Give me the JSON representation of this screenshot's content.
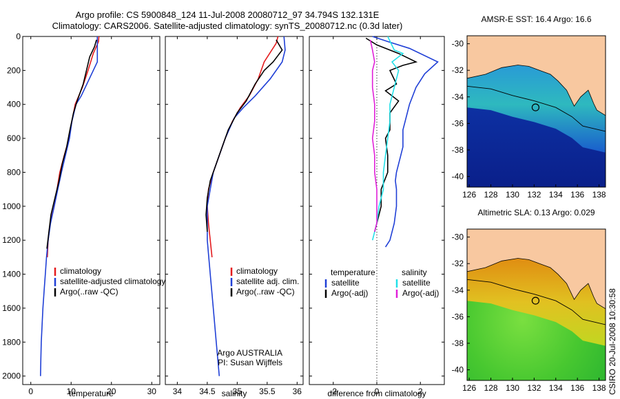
{
  "header": {
    "line1": "Argo profile: CS 5900848_124 11-Jul-2008 20080712_97 34.794S 132.131E",
    "line2": "Climatology: CARS2006. Satellite-adjusted climatology: synTS_20080712.nc (0.3d later)"
  },
  "side_label": "CSIRO 20-Jul-2008 10:30:58",
  "colors": {
    "climatology": "#e41a1c",
    "satellite": "#1f3fd6",
    "argo": "#000000",
    "sat_cyan": "#22e0e8",
    "argo_mag": "#e020d8",
    "land": "#f8c8a0"
  },
  "chart_data": [
    {
      "type": "line",
      "id": "temperature",
      "xlabel": "temperature",
      "xlim": [
        -2,
        32
      ],
      "ylim": [
        2050,
        0
      ],
      "x_ticks": [
        0,
        10,
        20,
        30
      ],
      "y_ticks": [
        0,
        200,
        400,
        600,
        800,
        1000,
        1200,
        1400,
        1600,
        1800,
        2000
      ],
      "legend": [
        {
          "label": "climatology",
          "color": "climatology"
        },
        {
          "label": "satellite-adjusted climatology",
          "color": "satellite"
        },
        {
          "label": "Argo(..raw -QC)",
          "color": "argo"
        }
      ],
      "series": [
        {
          "name": "climatology",
          "color": "climatology",
          "points": [
            [
              16.9,
              0
            ],
            [
              16.8,
              30
            ],
            [
              15.5,
              100
            ],
            [
              14.2,
              200
            ],
            [
              12.8,
              300
            ],
            [
              11,
              400
            ],
            [
              10.2,
              500
            ],
            [
              9.5,
              600
            ],
            [
              8.3,
              700
            ],
            [
              7.2,
              800
            ],
            [
              6.5,
              900
            ],
            [
              5.8,
              1000
            ],
            [
              4.8,
              1100
            ],
            [
              4.3,
              1200
            ],
            [
              4.1,
              1300
            ]
          ]
        },
        {
          "name": "satellite-adjusted climatology",
          "color": "satellite",
          "points": [
            [
              16.5,
              0
            ],
            [
              16.5,
              150
            ],
            [
              14.5,
              250
            ],
            [
              12.5,
              350
            ],
            [
              11.2,
              400
            ],
            [
              10.2,
              500
            ],
            [
              9.6,
              600
            ],
            [
              8.6,
              700
            ],
            [
              7.6,
              800
            ],
            [
              6.7,
              900
            ],
            [
              5.8,
              1000
            ],
            [
              4.9,
              1100
            ],
            [
              4.3,
              1200
            ],
            [
              3.9,
              1300
            ],
            [
              3.6,
              1400
            ],
            [
              3.3,
              1500
            ],
            [
              3,
              1600
            ],
            [
              2.8,
              1700
            ],
            [
              2.6,
              1800
            ],
            [
              2.5,
              1900
            ],
            [
              2.4,
              2000
            ]
          ]
        },
        {
          "name": "Argo(..raw -QC)",
          "color": "argo",
          "points": [
            [
              16.3,
              20
            ],
            [
              15.8,
              60
            ],
            [
              14.6,
              120
            ],
            [
              13.8,
              200
            ],
            [
              13,
              280
            ],
            [
              11.5,
              380
            ],
            [
              10.6,
              450
            ],
            [
              9.7,
              550
            ],
            [
              8.9,
              650
            ],
            [
              7.8,
              750
            ],
            [
              7,
              850
            ],
            [
              6,
              950
            ],
            [
              5,
              1050
            ],
            [
              4.5,
              1150
            ],
            [
              4,
              1250
            ]
          ]
        }
      ]
    },
    {
      "type": "line",
      "id": "salinity",
      "xlabel": "salinity",
      "xlim": [
        33.8,
        36.1
      ],
      "ylim": [
        2050,
        0
      ],
      "x_ticks": [
        34,
        34.5,
        35,
        35.5,
        36
      ],
      "x_tick_labels": [
        "34",
        "34.5",
        "35",
        "35.5",
        "36"
      ],
      "legend": [
        {
          "label": "climatology",
          "color": "climatology"
        },
        {
          "label": "satellite adj. clim.",
          "color": "satellite"
        },
        {
          "label": "Argo(..raw -QC)",
          "color": "argo"
        }
      ],
      "annotation": [
        "Argo AUSTRALIA",
        "PI: Susan Wijffels"
      ],
      "series": [
        {
          "name": "climatology",
          "color": "climatology",
          "points": [
            [
              35.68,
              0
            ],
            [
              35.65,
              40
            ],
            [
              35.45,
              150
            ],
            [
              35.35,
              250
            ],
            [
              35.2,
              350
            ],
            [
              35.05,
              420
            ],
            [
              34.92,
              500
            ],
            [
              34.8,
              600
            ],
            [
              34.7,
              700
            ],
            [
              34.6,
              800
            ],
            [
              34.52,
              900
            ],
            [
              34.5,
              1000
            ],
            [
              34.52,
              1100
            ],
            [
              34.55,
              1200
            ],
            [
              34.58,
              1300
            ]
          ]
        },
        {
          "name": "satellite adj. clim.",
          "color": "satellite",
          "points": [
            [
              35.78,
              0
            ],
            [
              35.8,
              80
            ],
            [
              35.75,
              150
            ],
            [
              35.55,
              250
            ],
            [
              35.3,
              350
            ],
            [
              35.1,
              420
            ],
            [
              34.95,
              480
            ],
            [
              34.8,
              600
            ],
            [
              34.7,
              700
            ],
            [
              34.6,
              800
            ],
            [
              34.55,
              900
            ],
            [
              34.5,
              1000
            ],
            [
              34.5,
              1200
            ],
            [
              34.55,
              1400
            ],
            [
              34.6,
              1600
            ],
            [
              34.65,
              1800
            ],
            [
              34.7,
              2000
            ]
          ]
        },
        {
          "name": "Argo(..raw -QC)",
          "color": "argo",
          "points": [
            [
              35.65,
              20
            ],
            [
              35.75,
              80
            ],
            [
              35.6,
              150
            ],
            [
              35.45,
              200
            ],
            [
              35.3,
              280
            ],
            [
              35.15,
              380
            ],
            [
              35,
              450
            ],
            [
              34.85,
              550
            ],
            [
              34.75,
              650
            ],
            [
              34.65,
              750
            ],
            [
              34.55,
              850
            ],
            [
              34.5,
              950
            ],
            [
              34.48,
              1050
            ],
            [
              34.5,
              1150
            ]
          ]
        }
      ]
    },
    {
      "type": "line",
      "id": "difference",
      "xlabel": "difference from climatology",
      "xlim": [
        -3.1,
        3.1
      ],
      "ylim": [
        2050,
        0
      ],
      "x_ticks": [
        -2,
        0,
        2
      ],
      "legend_headers": [
        "temperature",
        "salinity"
      ],
      "legend": [
        {
          "label": "satellite",
          "color": "satellite"
        },
        {
          "label": "Argo(-adj)",
          "color": "argo"
        },
        {
          "label": "satellite",
          "color": "sat_cyan"
        },
        {
          "label": "Argo(-adj)",
          "color": "argo_mag"
        }
      ],
      "series": [
        {
          "name": "temperature satellite",
          "color": "satellite",
          "points": [
            [
              -0.2,
              0
            ],
            [
              0.5,
              30
            ],
            [
              1.5,
              70
            ],
            [
              2.8,
              150
            ],
            [
              2.2,
              220
            ],
            [
              1.8,
              300
            ],
            [
              1.5,
              400
            ],
            [
              1.3,
              500
            ],
            [
              1.2,
              550
            ],
            [
              1.2,
              650
            ],
            [
              1.1,
              700
            ],
            [
              0.9,
              800
            ],
            [
              0.85,
              850
            ],
            [
              0.9,
              900
            ],
            [
              0.9,
              1000
            ],
            [
              0.8,
              1100
            ],
            [
              0.6,
              1200
            ],
            [
              0.4,
              1240
            ]
          ]
        },
        {
          "name": "temperature Argo(-adj)",
          "color": "argo",
          "points": [
            [
              -0.5,
              10
            ],
            [
              0,
              50
            ],
            [
              1,
              100
            ],
            [
              1.8,
              150
            ],
            [
              1.2,
              170
            ],
            [
              0.6,
              200
            ],
            [
              0.9,
              280
            ],
            [
              0.4,
              320
            ],
            [
              1,
              380
            ],
            [
              0.6,
              450
            ],
            [
              0.6,
              550
            ],
            [
              0.4,
              600
            ],
            [
              0.5,
              700
            ],
            [
              0.5,
              800
            ],
            [
              0.2,
              900
            ],
            [
              0.2,
              1000
            ],
            [
              0,
              1100
            ],
            [
              -0.1,
              1150
            ]
          ]
        },
        {
          "name": "salinity satellite",
          "color": "sat_cyan",
          "points": [
            [
              0.5,
              0
            ],
            [
              0.8,
              80
            ],
            [
              1.2,
              100
            ],
            [
              0.7,
              150
            ],
            [
              1,
              200
            ],
            [
              0.8,
              300
            ],
            [
              0.6,
              400
            ],
            [
              0.6,
              500
            ],
            [
              0.5,
              600
            ],
            [
              0.4,
              700
            ],
            [
              0.3,
              800
            ],
            [
              0.3,
              900
            ],
            [
              0.1,
              1000
            ],
            [
              0,
              1100
            ],
            [
              -0.2,
              1200
            ]
          ]
        },
        {
          "name": "salinity Argo(-adj)",
          "color": "argo_mag",
          "points": [
            [
              -0.3,
              20
            ],
            [
              -0.2,
              80
            ],
            [
              -0.1,
              150
            ],
            [
              -0.2,
              200
            ],
            [
              -0.2,
              300
            ],
            [
              -0.1,
              400
            ],
            [
              -0.1,
              500
            ],
            [
              -0.2,
              600
            ],
            [
              -0.1,
              700
            ],
            [
              -0.1,
              800
            ],
            [
              0,
              900
            ],
            [
              0,
              1000
            ],
            [
              0,
              1100
            ],
            [
              -0.1,
              1150
            ]
          ]
        }
      ]
    },
    {
      "type": "heatmap",
      "id": "sst_map",
      "title": "AMSR-E SST: 16.4 Argo: 16.6",
      "xlim": [
        125.8,
        138.6
      ],
      "ylim": [
        -40.8,
        -29.4
      ],
      "x_ticks": [
        126,
        128,
        130,
        132,
        134,
        136,
        138
      ],
      "y_ticks": [
        -30,
        -32,
        -34,
        -36,
        -38,
        -40
      ],
      "argo_position": [
        132.131,
        -34.794
      ],
      "coastline": [
        [
          125.8,
          -32.6
        ],
        [
          127.5,
          -32.3
        ],
        [
          129,
          -31.8
        ],
        [
          130.5,
          -31.6
        ],
        [
          131.5,
          -31.7
        ],
        [
          132.5,
          -32
        ],
        [
          133.5,
          -32.3
        ],
        [
          134.2,
          -32.8
        ],
        [
          135,
          -33.5
        ],
        [
          135.7,
          -34.7
        ],
        [
          136.3,
          -34
        ],
        [
          137,
          -33.5
        ],
        [
          137.5,
          -34.5
        ],
        [
          137.8,
          -35
        ],
        [
          138.6,
          -35.4
        ]
      ],
      "shelf_edge": [
        [
          125.8,
          -33.2
        ],
        [
          128,
          -33.4
        ],
        [
          130,
          -33.9
        ],
        [
          132,
          -34.3
        ],
        [
          134,
          -34.8
        ],
        [
          135.5,
          -35.5
        ],
        [
          136.5,
          -36.2
        ],
        [
          138.6,
          -36.6
        ]
      ]
    },
    {
      "type": "heatmap",
      "id": "sla_map",
      "title": "Altimetric SLA: 0.13 Argo: 0.029",
      "xlim": [
        125.8,
        138.6
      ],
      "ylim": [
        -40.8,
        -29.4
      ],
      "x_ticks": [
        126,
        128,
        130,
        132,
        134,
        136,
        138
      ],
      "y_ticks": [
        -30,
        -32,
        -34,
        -36,
        -38,
        -40
      ],
      "argo_position": [
        132.131,
        -34.794
      ],
      "coastline": [
        [
          125.8,
          -32.6
        ],
        [
          127.5,
          -32.3
        ],
        [
          129,
          -31.8
        ],
        [
          130.5,
          -31.6
        ],
        [
          131.5,
          -31.7
        ],
        [
          132.5,
          -32
        ],
        [
          133.5,
          -32.3
        ],
        [
          134.2,
          -32.8
        ],
        [
          135,
          -33.5
        ],
        [
          135.7,
          -34.7
        ],
        [
          136.3,
          -34
        ],
        [
          137,
          -33.5
        ],
        [
          137.5,
          -34.5
        ],
        [
          137.8,
          -35
        ],
        [
          138.6,
          -35.4
        ]
      ],
      "shelf_edge": [
        [
          125.8,
          -33.2
        ],
        [
          128,
          -33.4
        ],
        [
          130,
          -33.9
        ],
        [
          132,
          -34.3
        ],
        [
          134,
          -34.8
        ],
        [
          135.5,
          -35.5
        ],
        [
          136.5,
          -36.2
        ],
        [
          138.6,
          -36.6
        ]
      ]
    }
  ]
}
